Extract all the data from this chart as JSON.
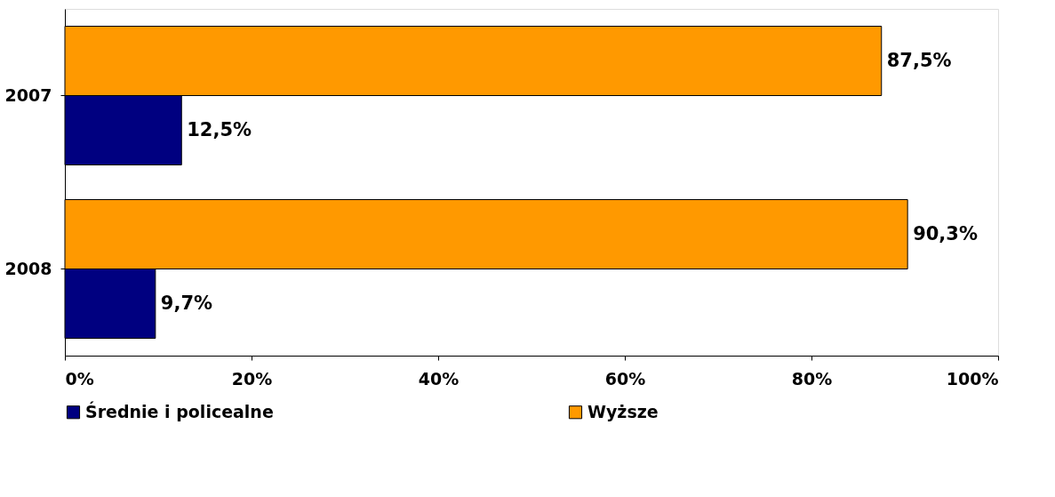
{
  "chart_data": {
    "type": "bar",
    "orientation": "horizontal",
    "categories": [
      "2007",
      "2008"
    ],
    "series": [
      {
        "name": "Średnie i policealne",
        "color": "#000080",
        "values": [
          12.5,
          9.7
        ],
        "value_labels": [
          "12,5%",
          "9,7%"
        ]
      },
      {
        "name": "Wyższe",
        "color": "#ff9900",
        "values": [
          87.5,
          90.3
        ],
        "value_labels": [
          "87,5%",
          "90,3%"
        ]
      }
    ],
    "xlim": [
      0,
      100
    ],
    "xticks": [
      {
        "value": 0,
        "label": "0%"
      },
      {
        "value": 20,
        "label": "20%"
      },
      {
        "value": 40,
        "label": "40%"
      },
      {
        "value": 60,
        "label": "60%"
      },
      {
        "value": 80,
        "label": "80%"
      },
      {
        "value": 100,
        "label": "100%"
      }
    ],
    "grid": false,
    "legend": "bottom"
  }
}
